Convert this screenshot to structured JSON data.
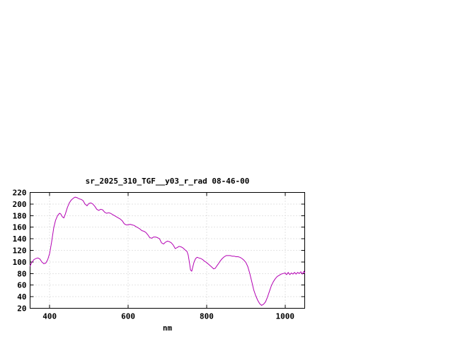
{
  "page": {
    "background": "#ffffff"
  },
  "chart_data": {
    "type": "line",
    "title": "sr_2025_310_TGF__y03_r_rad 08-46-00",
    "xlabel": "nm",
    "ylabel": "",
    "xlim": [
      350,
      1050
    ],
    "ylim": [
      20,
      220
    ],
    "x_ticks": [
      400,
      600,
      800,
      1000
    ],
    "y_ticks": [
      20,
      40,
      60,
      80,
      100,
      120,
      140,
      160,
      180,
      200,
      220
    ],
    "grid": true,
    "legend_position": "none",
    "line_color": "#b300b3",
    "colors": {
      "axis": "#000000",
      "grid": "#c8c8c8",
      "background": "#ffffff"
    },
    "series": [
      {
        "name": "sr_2025_310_TGF__y03_r_rad",
        "x": [
          350,
          355,
          360,
          365,
          370,
          375,
          380,
          385,
          390,
          395,
          400,
          405,
          410,
          415,
          420,
          425,
          428,
          432,
          436,
          440,
          445,
          450,
          455,
          460,
          465,
          470,
          475,
          480,
          485,
          490,
          495,
          500,
          505,
          510,
          515,
          520,
          525,
          530,
          535,
          540,
          545,
          550,
          555,
          560,
          565,
          570,
          575,
          580,
          585,
          590,
          595,
          600,
          605,
          610,
          615,
          620,
          625,
          630,
          635,
          640,
          645,
          650,
          655,
          660,
          665,
          670,
          675,
          680,
          685,
          690,
          695,
          700,
          705,
          710,
          715,
          720,
          725,
          730,
          735,
          740,
          745,
          750,
          753,
          756,
          759,
          762,
          765,
          768,
          772,
          776,
          780,
          785,
          790,
          795,
          800,
          805,
          810,
          815,
          818,
          822,
          826,
          830,
          835,
          840,
          845,
          850,
          855,
          860,
          865,
          870,
          875,
          880,
          885,
          890,
          895,
          900,
          905,
          910,
          915,
          920,
          925,
          930,
          935,
          940,
          945,
          950,
          955,
          960,
          965,
          970,
          975,
          980,
          985,
          990,
          995,
          1000,
          1004,
          1008,
          1012,
          1016,
          1020,
          1024,
          1028,
          1032,
          1036,
          1040,
          1044,
          1048,
          1050
        ],
        "y": [
          93,
          100,
          104,
          106,
          107,
          105,
          100,
          97,
          98,
          104,
          115,
          135,
          158,
          172,
          180,
          184,
          183,
          178,
          176,
          183,
          194,
          202,
          207,
          210,
          212,
          211,
          209,
          208,
          206,
          200,
          197,
          201,
          202,
          200,
          196,
          191,
          189,
          191,
          190,
          186,
          184,
          185,
          184,
          182,
          180,
          178,
          176,
          174,
          171,
          166,
          164,
          164,
          165,
          164,
          163,
          161,
          159,
          157,
          154,
          153,
          151,
          147,
          142,
          141,
          143,
          143,
          142,
          140,
          133,
          131,
          134,
          136,
          135,
          133,
          129,
          123,
          125,
          127,
          126,
          124,
          121,
          118,
          112,
          100,
          86,
          84,
          92,
          100,
          106,
          108,
          107,
          106,
          104,
          101,
          99,
          96,
          93,
          90,
          88,
          89,
          93,
          97,
          102,
          106,
          109,
          111,
          111,
          111,
          110,
          110,
          109,
          109,
          108,
          106,
          103,
          99,
          92,
          80,
          66,
          52,
          42,
          34,
          28,
          25,
          27,
          31,
          39,
          49,
          59,
          66,
          71,
          75,
          77,
          79,
          80,
          81,
          78,
          82,
          78,
          81,
          79,
          82,
          79,
          82,
          80,
          83,
          79,
          84,
          81
        ]
      }
    ]
  }
}
